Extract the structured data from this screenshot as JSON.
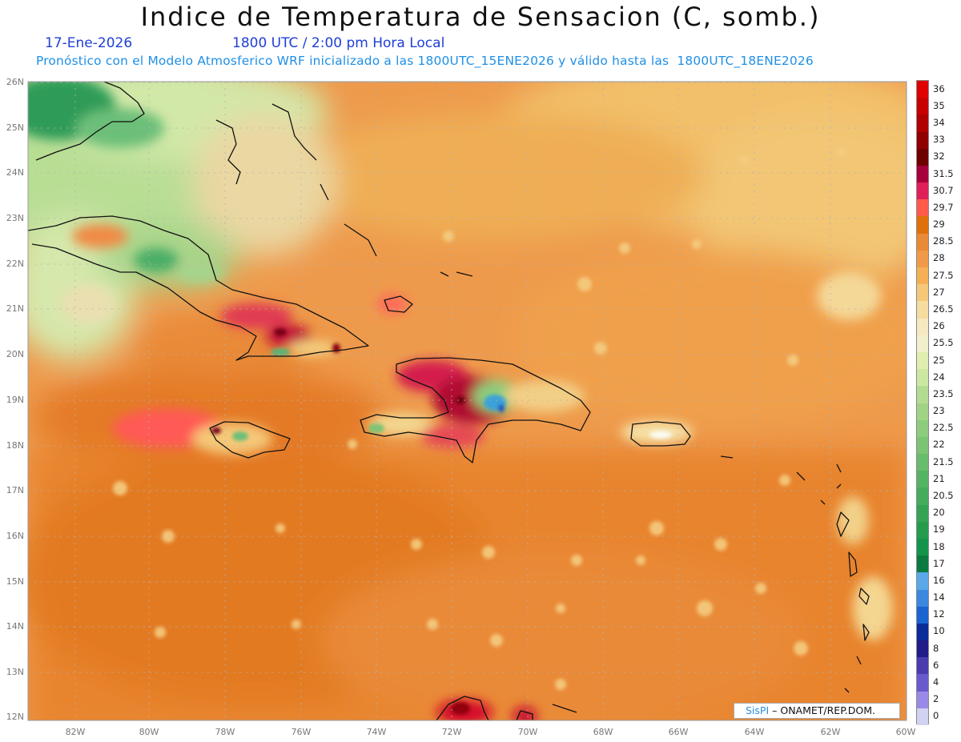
{
  "title": "Indice de Temperatura de Sensacion (C, somb.)",
  "date": "17-Ene-2026",
  "time": "1800 UTC / 2:00 pm Hora Local",
  "model_line": "Pronóstico con el Modelo Atmosferico WRF inicializado a las 1800UTC_15ENE2026 y válido hasta las  1800UTC_18ENE2026",
  "credit": {
    "brand": "SisPI",
    "rest": " – ONAMET/REP.DOM."
  },
  "map": {
    "lat_labels": [
      "26N",
      "25N",
      "24N",
      "23N",
      "22N",
      "21N",
      "20N",
      "19N",
      "18N",
      "17N",
      "16N",
      "15N",
      "14N",
      "13N",
      "12N"
    ],
    "lon_labels": [
      "82W",
      "80W",
      "78W",
      "76W",
      "74W",
      "72W",
      "70W",
      "68W",
      "66W",
      "64W",
      "62W",
      "60W"
    ],
    "lat_range": [
      12,
      26
    ],
    "lon_range": [
      -83.2,
      -60
    ]
  },
  "legend": {
    "labels": [
      "36",
      "35",
      "34",
      "33",
      "32",
      "31.5",
      "30.7",
      "29.7",
      "29",
      "28.5",
      "28",
      "27.5",
      "27",
      "26.5",
      "26",
      "25.5",
      "25",
      "24",
      "23.5",
      "23",
      "22.5",
      "22",
      "21.5",
      "21",
      "20.5",
      "20",
      "19",
      "18",
      "17",
      "16",
      "14",
      "12",
      "10",
      "8",
      "6",
      "4",
      "2",
      "0"
    ],
    "colors": [
      "#e00000",
      "#c80000",
      "#b00000",
      "#900000",
      "#6e0000",
      "#a8003c",
      "#e01e5a",
      "#ff5a4a",
      "#e0700a",
      "#ea8a36",
      "#f09a48",
      "#f5b055",
      "#f5c878",
      "#f7dca0",
      "#f6e8c0",
      "#f2f0cc",
      "#e0eeb0",
      "#cce8a0",
      "#b4dc90",
      "#a0d484",
      "#8ccc7c",
      "#7ac474",
      "#68bc6c",
      "#54b464",
      "#44ac5c",
      "#34a454",
      "#249c4c",
      "#14944a",
      "#0a7a40",
      "#5aa8ea",
      "#3a88e0",
      "#1a64d0",
      "#0a2c9a",
      "#221c8a",
      "#4a3cb0",
      "#6a5ad0",
      "#9a8ae8",
      "#d2d2f2"
    ]
  }
}
